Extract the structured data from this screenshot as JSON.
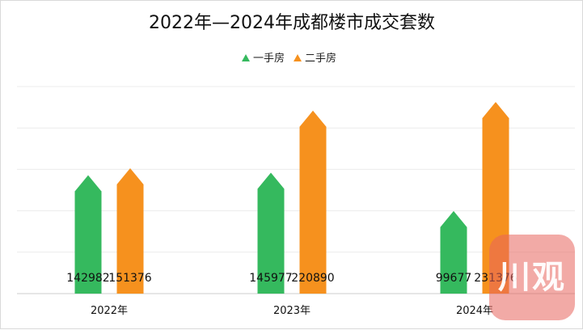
{
  "chart_data": {
    "type": "bar",
    "title": "2022年—2024年成都楼市成交套数",
    "categories": [
      "2022年",
      "2023年",
      "2024年"
    ],
    "series": [
      {
        "name": "一手房",
        "color": "#35b95e",
        "values": [
          142982,
          145977,
          99677
        ]
      },
      {
        "name": "二手房",
        "color": "#f6911e",
        "values": [
          151376,
          220890,
          231376
        ]
      }
    ],
    "ylim": [
      0,
      250000
    ],
    "grid": true,
    "legend": "top-center",
    "bar_shape": "arrow-up"
  },
  "watermark": {
    "text": "川观"
  }
}
